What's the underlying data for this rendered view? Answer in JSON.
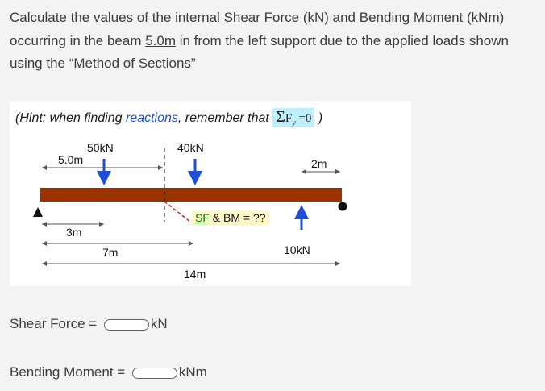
{
  "question": {
    "p1": "Calculate the values of the internal ",
    "shear_force": "Shear Force ",
    "p2": "(kN) and ",
    "bending_moment": "Bending Moment",
    "p3": " (kNm) occurring in the beam ",
    "distance": "5.0m",
    "p4": " in from the left support due to the applied loads shown using the “Method of Sections”"
  },
  "figure": {
    "hint_open": "(Hint: when finding ",
    "hint_reactions": "reactions",
    "hint_rest": ", remember that ",
    "hint_formula_sigma": "Σ",
    "hint_formula_f": "F",
    "hint_formula_y": "y",
    "hint_formula_eq": " =0",
    "hint_close": " )",
    "loads": {
      "load_50": "50kN",
      "load_40": "40kN",
      "reaction": "10kN"
    },
    "dims": {
      "cut": "5.0m",
      "right": "2m",
      "d3": "3m",
      "d7": "7m",
      "d14": "14m"
    },
    "sfbm_u": "SF",
    "sfbm_rest": " & BM = ??",
    "colors": {
      "beam": "#9a3300",
      "arrow": "#1f4fd8",
      "cut_line": "#e02020",
      "label_bg": "#fff8c4",
      "hint_box": "#bfeefc"
    }
  },
  "answers": {
    "shear_label": "Shear Force = ",
    "shear_unit": "kN",
    "shear_value": "",
    "moment_label": "Bending Moment = ",
    "moment_unit": "kNm",
    "moment_value": ""
  }
}
